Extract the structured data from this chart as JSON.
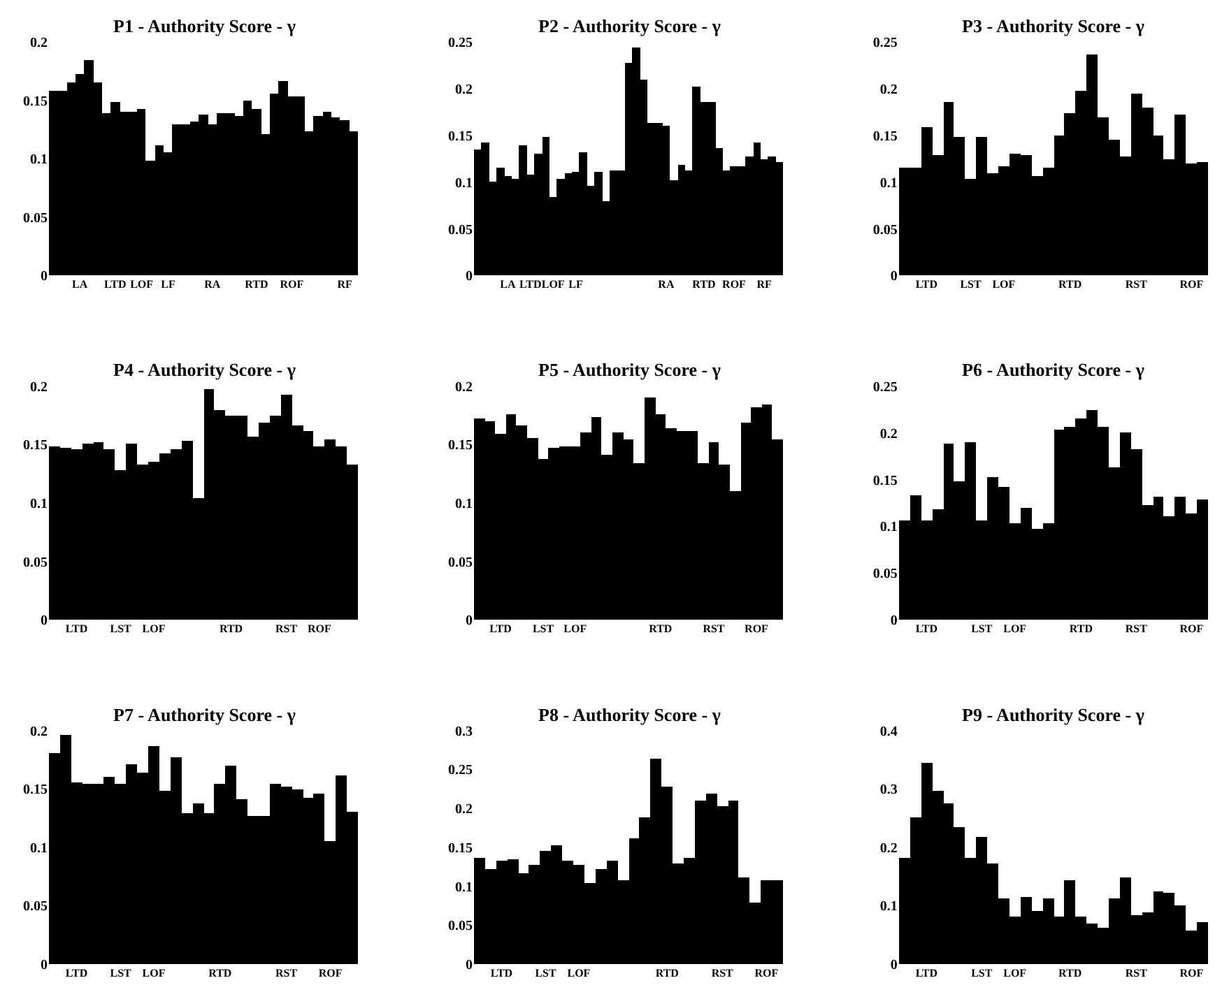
{
  "chart_data": [
    {
      "type": "bar",
      "title": "P1 - Authority Score - γ",
      "color": "#000000",
      "ylim": [
        0,
        0.2
      ],
      "yticks": [
        0,
        0.05,
        0.1,
        0.15,
        0.2
      ],
      "categories": [
        null,
        null,
        null,
        "LA",
        null,
        null,
        null,
        "LTD",
        null,
        null,
        "LOF",
        null,
        null,
        "LF",
        null,
        null,
        null,
        null,
        "RA",
        null,
        null,
        null,
        null,
        "RTD",
        null,
        null,
        null,
        "ROF",
        null,
        null,
        null,
        null,
        null,
        "RF",
        null
      ],
      "values": [
        0.158,
        0.158,
        0.165,
        0.173,
        0.185,
        0.165,
        0.139,
        0.148,
        0.14,
        0.14,
        0.143,
        0.098,
        0.112,
        0.105,
        0.129,
        0.129,
        0.132,
        0.138,
        0.13,
        0.139,
        0.139,
        0.137,
        0.15,
        0.142,
        0.121,
        0.156,
        0.167,
        0.153,
        0.153,
        0.123,
        0.137,
        0.14,
        0.136,
        0.133,
        0.123
      ]
    },
    {
      "type": "bar",
      "title": "P2 - Authority Score - γ",
      "color": "#000000",
      "ylim": [
        0,
        0.25
      ],
      "yticks": [
        0,
        0.05,
        0.1,
        0.15,
        0.2,
        0.25
      ],
      "categories": [
        null,
        null,
        null,
        null,
        "LA",
        null,
        null,
        "LTD",
        null,
        null,
        "LOF",
        null,
        null,
        "LF",
        null,
        null,
        null,
        null,
        null,
        null,
        null,
        null,
        null,
        null,
        null,
        "RA",
        null,
        null,
        null,
        null,
        "RTD",
        null,
        null,
        null,
        "ROF",
        null,
        null,
        null,
        "RF",
        null,
        null
      ],
      "values": [
        0.135,
        0.143,
        0.101,
        0.116,
        0.107,
        0.103,
        0.139,
        0.108,
        0.131,
        0.148,
        0.084,
        0.103,
        0.109,
        0.111,
        0.132,
        0.096,
        0.111,
        0.079,
        0.113,
        0.113,
        0.228,
        0.244,
        0.21,
        0.163,
        0.163,
        0.161,
        0.102,
        0.119,
        0.113,
        0.202,
        0.185,
        0.185,
        0.137,
        0.112,
        0.117,
        0.117,
        0.127,
        0.143,
        0.125,
        0.127,
        0.122
      ]
    },
    {
      "type": "bar",
      "title": "P3 - Authority Score - γ",
      "color": "#000000",
      "ylim": [
        0,
        0.25
      ],
      "yticks": [
        0,
        0.05,
        0.1,
        0.15,
        0.2,
        0.25
      ],
      "categories": [
        null,
        null,
        "LTD",
        null,
        null,
        null,
        "LST",
        null,
        null,
        "LOF",
        null,
        null,
        null,
        null,
        null,
        "RTD",
        null,
        null,
        null,
        null,
        null,
        "RST",
        null,
        null,
        null,
        null,
        "ROF",
        null
      ],
      "values": [
        0.115,
        0.115,
        0.159,
        0.129,
        0.186,
        0.149,
        0.104,
        0.148,
        0.11,
        0.117,
        0.13,
        0.129,
        0.106,
        0.115,
        0.15,
        0.174,
        0.198,
        0.237,
        0.17,
        0.146,
        0.127,
        0.195,
        0.18,
        0.15,
        0.125,
        0.172,
        0.12,
        0.122
      ]
    },
    {
      "type": "bar",
      "title": "P4 - Authority Score - γ",
      "color": "#000000",
      "ylim": [
        0,
        0.2
      ],
      "yticks": [
        0,
        0.05,
        0.1,
        0.15,
        0.2
      ],
      "categories": [
        null,
        null,
        "LTD",
        null,
        null,
        null,
        "LST",
        null,
        null,
        "LOF",
        null,
        null,
        null,
        null,
        null,
        null,
        "RTD",
        null,
        null,
        null,
        null,
        "RST",
        null,
        null,
        "ROF",
        null,
        null,
        null
      ],
      "values": [
        0.148,
        0.147,
        0.146,
        0.151,
        0.152,
        0.146,
        0.128,
        0.151,
        0.133,
        0.135,
        0.142,
        0.146,
        0.153,
        0.104,
        0.198,
        0.18,
        0.175,
        0.175,
        0.157,
        0.169,
        0.175,
        0.193,
        0.167,
        0.162,
        0.148,
        0.154,
        0.148,
        0.133
      ]
    },
    {
      "type": "bar",
      "title": "P5 - Authority Score - γ",
      "color": "#000000",
      "ylim": [
        0,
        0.2
      ],
      "yticks": [
        0,
        0.05,
        0.1,
        0.15,
        0.2
      ],
      "categories": [
        null,
        null,
        "LTD",
        null,
        null,
        null,
        "LST",
        null,
        null,
        "LOF",
        null,
        null,
        null,
        null,
        null,
        null,
        null,
        "RTD",
        null,
        null,
        null,
        null,
        "RST",
        null,
        null,
        null,
        "ROF",
        null,
        null
      ],
      "values": [
        0.172,
        0.17,
        0.159,
        0.176,
        0.166,
        0.156,
        0.138,
        0.147,
        0.149,
        0.148,
        0.16,
        0.174,
        0.141,
        0.161,
        0.154,
        0.134,
        0.191,
        0.176,
        0.164,
        0.162,
        0.162,
        0.134,
        0.152,
        0.133,
        0.11,
        0.169,
        0.182,
        0.184,
        0.155
      ]
    },
    {
      "type": "bar",
      "title": "P6 - Authority Score - γ",
      "color": "#000000",
      "ylim": [
        0,
        0.25
      ],
      "yticks": [
        0,
        0.05,
        0.1,
        0.15,
        0.2,
        0.25
      ],
      "categories": [
        null,
        null,
        "LTD",
        null,
        null,
        null,
        null,
        "LST",
        null,
        null,
        "LOF",
        null,
        null,
        null,
        null,
        null,
        "RTD",
        null,
        null,
        null,
        null,
        "RST",
        null,
        null,
        null,
        null,
        "ROF",
        null
      ],
      "values": [
        0.106,
        0.133,
        0.107,
        0.118,
        0.188,
        0.148,
        0.19,
        0.106,
        0.153,
        0.142,
        0.104,
        0.12,
        0.097,
        0.104,
        0.204,
        0.206,
        0.215,
        0.224,
        0.207,
        0.164,
        0.201,
        0.182,
        0.123,
        0.132,
        0.111,
        0.132,
        0.114,
        0.129
      ]
    },
    {
      "type": "bar",
      "title": "P7 - Authority Score - γ",
      "color": "#000000",
      "ylim": [
        0,
        0.2
      ],
      "yticks": [
        0,
        0.05,
        0.1,
        0.15,
        0.2
      ],
      "categories": [
        null,
        null,
        "LTD",
        null,
        null,
        null,
        "LST",
        null,
        null,
        "LOF",
        null,
        null,
        null,
        null,
        null,
        "RTD",
        null,
        null,
        null,
        null,
        null,
        "RST",
        null,
        null,
        null,
        "ROF",
        null,
        null
      ],
      "values": [
        0.181,
        0.197,
        0.156,
        0.154,
        0.154,
        0.16,
        0.154,
        0.171,
        0.164,
        0.187,
        0.148,
        0.177,
        0.13,
        0.138,
        0.129,
        0.155,
        0.17,
        0.141,
        0.127,
        0.127,
        0.155,
        0.152,
        0.15,
        0.143,
        0.146,
        0.105,
        0.162,
        0.131
      ]
    },
    {
      "type": "bar",
      "title": "P8 - Authority Score - γ",
      "color": "#000000",
      "ylim": [
        0,
        0.3
      ],
      "yticks": [
        0,
        0.05,
        0.1,
        0.15,
        0.2,
        0.25,
        0.3
      ],
      "categories": [
        null,
        null,
        "LTD",
        null,
        null,
        null,
        "LST",
        null,
        null,
        "LOF",
        null,
        null,
        null,
        null,
        null,
        null,
        null,
        "RTD",
        null,
        null,
        null,
        null,
        "RST",
        null,
        null,
        null,
        "ROF",
        null
      ],
      "values": [
        0.136,
        0.122,
        0.134,
        0.135,
        0.117,
        0.128,
        0.146,
        0.152,
        0.134,
        0.128,
        0.105,
        0.123,
        0.133,
        0.108,
        0.161,
        0.189,
        0.265,
        0.229,
        0.129,
        0.136,
        0.211,
        0.22,
        0.203,
        0.211,
        0.112,
        0.08,
        0.108,
        0.108
      ]
    },
    {
      "type": "bar",
      "title": "P9 - Authority Score - γ",
      "color": "#000000",
      "ylim": [
        0,
        0.4
      ],
      "yticks": [
        0,
        0.1,
        0.2,
        0.3,
        0.4
      ],
      "categories": [
        null,
        null,
        "LTD",
        null,
        null,
        null,
        null,
        "LST",
        null,
        null,
        "LOF",
        null,
        null,
        null,
        null,
        "RTD",
        null,
        null,
        null,
        null,
        null,
        "RST",
        null,
        null,
        null,
        null,
        "ROF",
        null
      ],
      "values": [
        0.183,
        0.251,
        0.345,
        0.297,
        0.275,
        0.234,
        0.183,
        0.217,
        0.173,
        0.113,
        0.083,
        0.115,
        0.092,
        0.113,
        0.081,
        0.143,
        0.081,
        0.07,
        0.062,
        0.112,
        0.149,
        0.085,
        0.088,
        0.125,
        0.122,
        0.102,
        0.059,
        0.072
      ]
    }
  ]
}
